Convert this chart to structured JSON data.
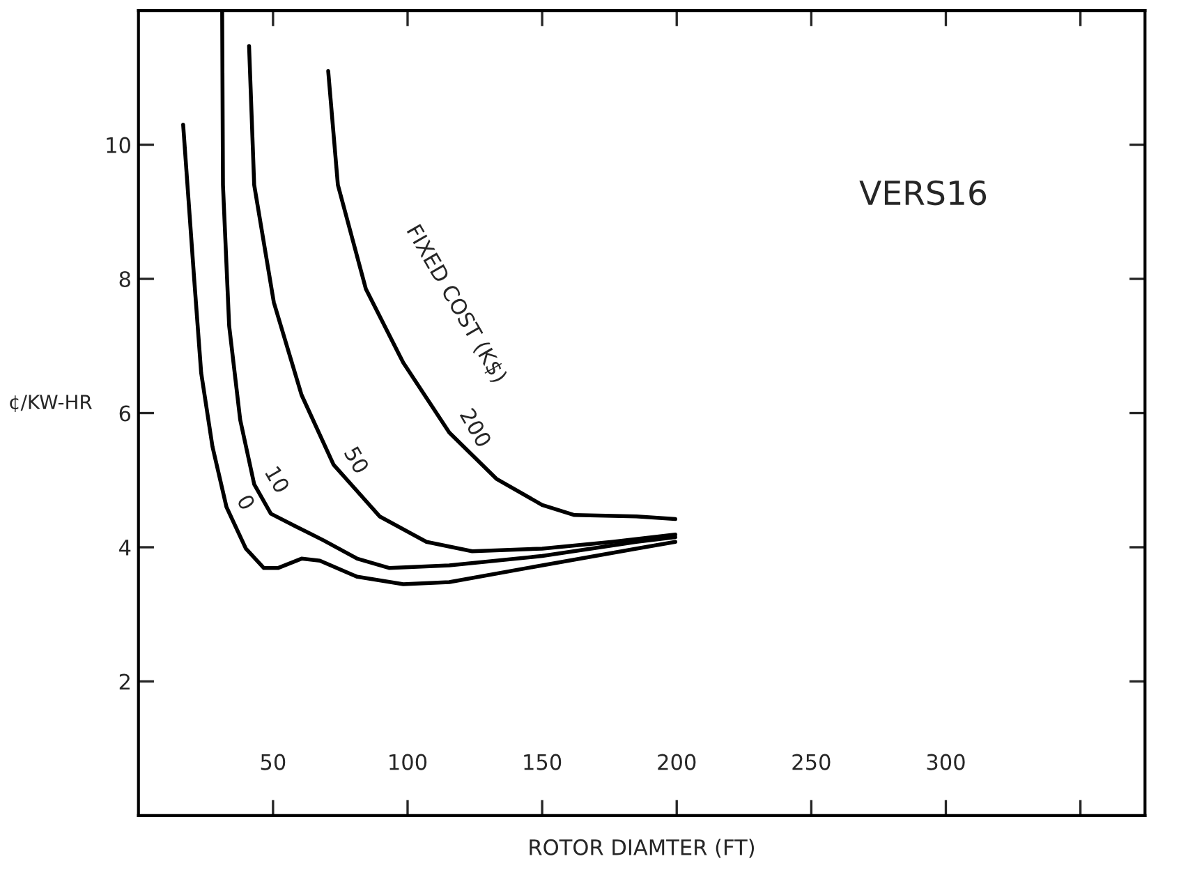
{
  "chart_data": {
    "type": "line",
    "title": "VERS16",
    "xlabel": "ROTOR DIAMTER (FT)",
    "ylabel": "¢/KW-HR",
    "xlim": [
      0,
      374
    ],
    "ylim": [
      0,
      12
    ],
    "xticks": [
      50,
      100,
      150,
      200,
      250,
      300,
      {
        "value": 350,
        "label": null
      }
    ],
    "yticks": [
      2,
      4,
      6,
      8,
      10
    ],
    "grid": false,
    "legend": false,
    "marker": "none",
    "line_style": "solid",
    "annotations": [
      "FIXED COST (K$)"
    ],
    "series": [
      {
        "name": "0",
        "color": "#000000",
        "x": [
          16.6,
          20.7,
          23.3,
          27.5,
          32.7,
          39.9,
          46.6,
          51.8,
          60.6,
          67.4,
          81.3,
          98.4,
          115.5,
          150,
          185,
          199.5
        ],
        "values": [
          10.3,
          8.0,
          6.6,
          5.5,
          4.6,
          3.98,
          3.69,
          3.69,
          3.83,
          3.8,
          3.56,
          3.45,
          3.48,
          3.73,
          3.98,
          4.08
        ]
      },
      {
        "name": "10",
        "color": "#000000",
        "x": [
          31.1,
          31.4,
          33.7,
          37.8,
          43,
          49.2,
          58.5,
          68.9,
          81.3,
          93.3,
          115.5,
          150,
          185,
          199.5
        ],
        "values": [
          12.0,
          9.4,
          7.3,
          5.9,
          4.94,
          4.5,
          4.31,
          4.1,
          3.83,
          3.69,
          3.73,
          3.87,
          4.08,
          4.15
        ]
      },
      {
        "name": "50",
        "color": "#000000",
        "x": [
          41.1,
          43,
          50.3,
          60.6,
          72.5,
          89.6,
          107,
          124,
          150,
          176,
          199.5
        ],
        "values": [
          11.47,
          9.4,
          7.65,
          6.27,
          5.23,
          4.46,
          4.08,
          3.94,
          3.98,
          4.08,
          4.19
        ]
      },
      {
        "name": "200",
        "color": "#000000",
        "x": [
          70.5,
          74.1,
          84.5,
          98.4,
          115.5,
          133,
          150,
          162,
          185,
          199.5
        ],
        "values": [
          11.1,
          9.4,
          7.85,
          6.75,
          5.71,
          5.02,
          4.63,
          4.48,
          4.46,
          4.42
        ]
      }
    ]
  }
}
